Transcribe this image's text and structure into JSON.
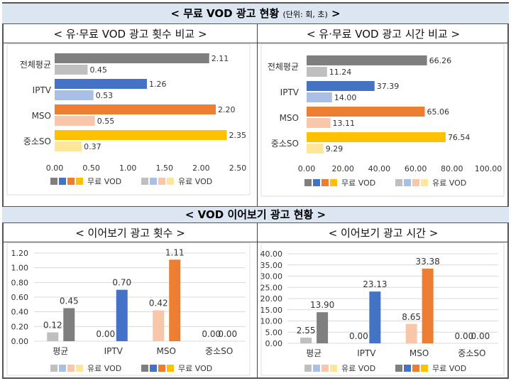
{
  "section1": {
    "title": "< 무료 VOD 광고 현황",
    "unit": "(단위: 회, 초)",
    "title_end": ">"
  },
  "section2": {
    "title": "< VOD 이어보기 광고 현황 >"
  },
  "colors": {
    "free": [
      "#7f7f7f",
      "#4472c4",
      "#ed7d31",
      "#ffc000"
    ],
    "paid": [
      "#bfbfbf",
      "#a9bfe6",
      "#f8c6a8",
      "#ffe699"
    ],
    "band": "#dce6f2"
  },
  "chart_data": [
    {
      "type": "bar",
      "orientation": "horizontal",
      "title": "< 유·무료 VOD 광고 횟수 비교 >",
      "categories": [
        "전체평균",
        "IPTV",
        "MSO",
        "중소SO"
      ],
      "series": [
        {
          "name": "무료 VOD",
          "values": [
            2.11,
            1.26,
            2.2,
            2.35
          ]
        },
        {
          "name": "유료 VOD",
          "values": [
            0.45,
            0.53,
            0.55,
            0.37
          ]
        }
      ],
      "ticks": [
        "0.00",
        "0.50",
        "1.00",
        "1.50",
        "2.00",
        "2.50"
      ],
      "xlim": [
        0,
        2.5
      ],
      "legend": "bottom"
    },
    {
      "type": "bar",
      "orientation": "horizontal",
      "title": "< 유·무료 VOD 광고 시간 비교 >",
      "categories": [
        "전체평균",
        "IPTV",
        "MSO",
        "중소SO"
      ],
      "series": [
        {
          "name": "무료 VOD",
          "values": [
            66.26,
            37.39,
            65.06,
            76.54
          ]
        },
        {
          "name": "유료 VOD",
          "values": [
            11.24,
            14.0,
            13.11,
            9.29
          ]
        }
      ],
      "ticks": [
        "0.00",
        "20.00",
        "40.00",
        "60.00",
        "80.00",
        "100.00"
      ],
      "xlim": [
        0,
        100
      ],
      "legend": "bottom"
    },
    {
      "type": "bar",
      "orientation": "vertical",
      "title": "< 이어보기 광고 횟수 >",
      "categories": [
        "평균",
        "IPTV",
        "MSO",
        "중소SO"
      ],
      "series": [
        {
          "name": "유료 VOD",
          "values": [
            0.12,
            0.0,
            0.42,
            0.0
          ]
        },
        {
          "name": "무료 VOD",
          "values": [
            0.45,
            0.7,
            1.11,
            0.0
          ]
        }
      ],
      "ticks": [
        "0.00",
        "0.20",
        "0.40",
        "0.60",
        "0.80",
        "1.00",
        "1.20"
      ],
      "ylim": [
        0,
        1.2
      ],
      "legend": "bottom"
    },
    {
      "type": "bar",
      "orientation": "vertical",
      "title": "< 이어보기 광고 시간 >",
      "categories": [
        "평균",
        "IPTV",
        "MSO",
        "중소SO"
      ],
      "series": [
        {
          "name": "유료 VOD",
          "values": [
            2.55,
            0.0,
            8.65,
            0.0
          ]
        },
        {
          "name": "무료 VOD",
          "values": [
            13.9,
            23.13,
            33.38,
            0.0
          ]
        }
      ],
      "ticks": [
        "0.00",
        "5.00",
        "10.00",
        "15.00",
        "20.00",
        "25.00",
        "30.00",
        "35.00",
        "40.00"
      ],
      "ylim": [
        0,
        40
      ],
      "legend": "bottom"
    }
  ]
}
